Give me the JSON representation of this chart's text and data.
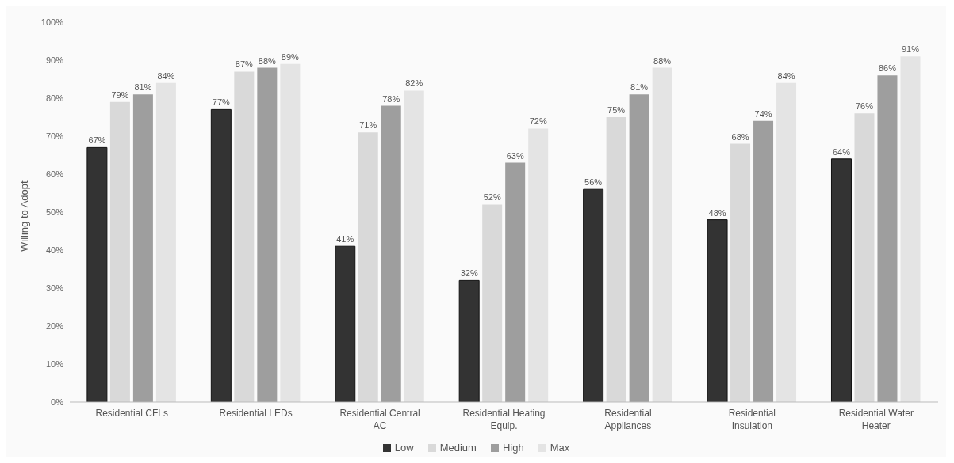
{
  "chart_data": {
    "type": "bar",
    "ylabel": "Willing to Adopt",
    "categories": [
      "Residential CFLs",
      "Residential LEDs",
      "Residential Central AC",
      "Residential Heating Equip.",
      "Residential Appliances",
      "Residential Insulation",
      "Residential Water Heater"
    ],
    "series": [
      {
        "name": "Low",
        "color": "#333333",
        "values": [
          67,
          77,
          41,
          32,
          56,
          48,
          64
        ],
        "value_labels": [
          "67%",
          "77%",
          "41%",
          "32%",
          "56%",
          "48%",
          "64%"
        ]
      },
      {
        "name": "Medium",
        "color": "#d9d9d9",
        "values": [
          79,
          87,
          71,
          52,
          75,
          68,
          76
        ],
        "value_labels": [
          "79%",
          "87%",
          "71%",
          "52%",
          "75%",
          "68%",
          "76%"
        ]
      },
      {
        "name": "High",
        "color": "#9e9e9e",
        "values": [
          81,
          88,
          78,
          63,
          81,
          74,
          86
        ],
        "value_labels": [
          "81%",
          "88%",
          "78%",
          "63%",
          "81%",
          "74%",
          "86%"
        ]
      },
      {
        "name": "Max",
        "color": "#e4e4e4",
        "values": [
          84,
          89,
          82,
          72,
          88,
          84,
          91
        ],
        "value_labels": [
          "84%",
          "89%",
          "82%",
          "72%",
          "88%",
          "84%",
          "91%"
        ]
      }
    ],
    "ylim": [
      0,
      100
    ],
    "yticks": [
      {
        "value": 0,
        "label": "0%"
      },
      {
        "value": 10,
        "label": "10%"
      },
      {
        "value": 20,
        "label": "20%"
      },
      {
        "value": 30,
        "label": "30%"
      },
      {
        "value": 40,
        "label": "40%"
      },
      {
        "value": 50,
        "label": "50%"
      },
      {
        "value": 60,
        "label": "60%"
      },
      {
        "value": 70,
        "label": "70%"
      },
      {
        "value": 80,
        "label": "80%"
      },
      {
        "value": 90,
        "label": "90%"
      },
      {
        "value": 100,
        "label": "100%"
      }
    ],
    "grid": false,
    "legend": "bottom"
  }
}
